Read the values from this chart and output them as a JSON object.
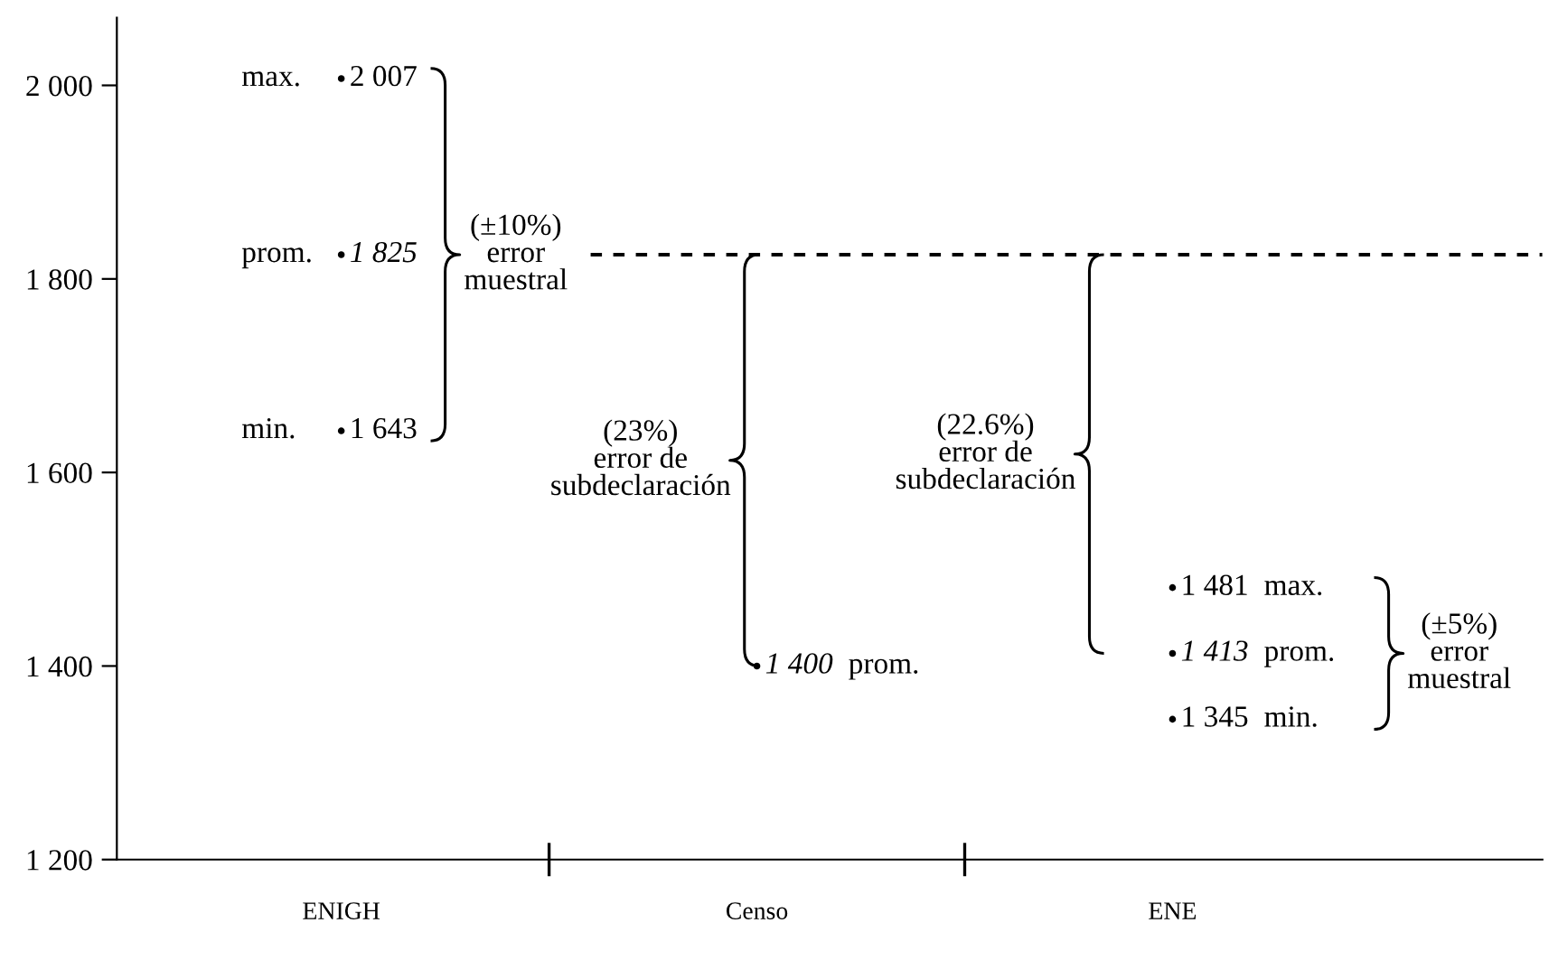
{
  "chart_data": {
    "type": "scatter",
    "marker": "circle",
    "categories": [
      "ENIGH",
      "Censo",
      "ENE"
    ],
    "series": [
      {
        "name": "max.",
        "color": "#000000",
        "values": [
          2007,
          null,
          1481
        ],
        "value_labels": [
          "2 007",
          null,
          "1 481"
        ]
      },
      {
        "name": "prom.",
        "color": "#000000",
        "values": [
          1825,
          1400,
          1413
        ],
        "value_labels": [
          "1 825",
          "1 400",
          "1 413"
        ]
      },
      {
        "name": "min.",
        "color": "#000000",
        "values": [
          1643,
          null,
          1345
        ],
        "value_labels": [
          "1 643",
          null,
          "1 345"
        ]
      }
    ],
    "ylim": [
      1200,
      2070
    ],
    "yticks": [
      {
        "value": 1200,
        "label": "1 200"
      },
      {
        "value": 1400,
        "label": "1 400"
      },
      {
        "value": 1600,
        "label": "1 600"
      },
      {
        "value": 1800,
        "label": "1 800"
      },
      {
        "value": 2000,
        "label": "2 000"
      }
    ],
    "ref_lines": [
      {
        "axis": "y",
        "value": 1825,
        "label": null,
        "color": "#000000",
        "line_style": "dashed"
      }
    ],
    "annotations": [
      "(±10%)\nerror\nmuestral",
      "(23%)\nerror de\nsubdeclaración",
      "(22.6%)\nerror de\nsubdeclaración",
      "(±5%)\nerror\nmuestral"
    ],
    "legend": false
  }
}
